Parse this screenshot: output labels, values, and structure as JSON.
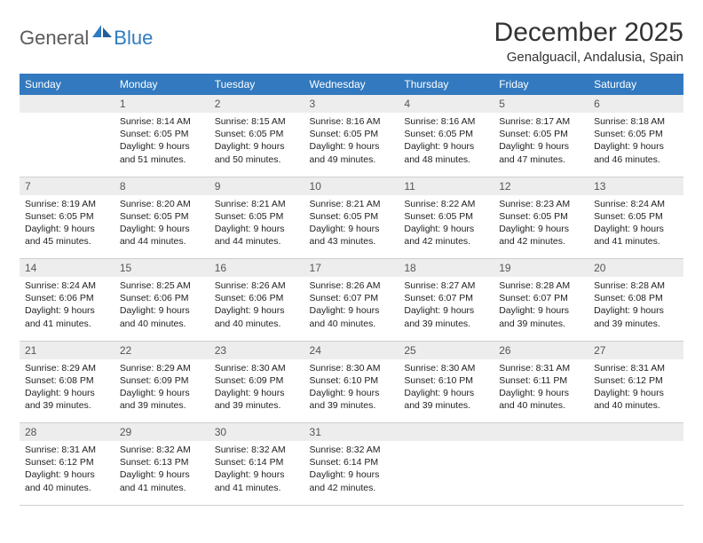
{
  "logo": {
    "part1": "General",
    "part2": "Blue"
  },
  "title": "December 2025",
  "location": "Genalguacil, Andalusia, Spain",
  "colors": {
    "header_bg": "#3279bf",
    "header_text": "#ffffff",
    "daynum_bg": "#ededed",
    "logo_gray": "#5b5b5b",
    "logo_blue": "#2f7bbf"
  },
  "weekdays": [
    "Sunday",
    "Monday",
    "Tuesday",
    "Wednesday",
    "Thursday",
    "Friday",
    "Saturday"
  ],
  "weeks": [
    {
      "nums": [
        "",
        "1",
        "2",
        "3",
        "4",
        "5",
        "6"
      ],
      "cells": [
        "",
        "Sunrise: 8:14 AM\nSunset: 6:05 PM\nDaylight: 9 hours and 51 minutes.",
        "Sunrise: 8:15 AM\nSunset: 6:05 PM\nDaylight: 9 hours and 50 minutes.",
        "Sunrise: 8:16 AM\nSunset: 6:05 PM\nDaylight: 9 hours and 49 minutes.",
        "Sunrise: 8:16 AM\nSunset: 6:05 PM\nDaylight: 9 hours and 48 minutes.",
        "Sunrise: 8:17 AM\nSunset: 6:05 PM\nDaylight: 9 hours and 47 minutes.",
        "Sunrise: 8:18 AM\nSunset: 6:05 PM\nDaylight: 9 hours and 46 minutes."
      ]
    },
    {
      "nums": [
        "7",
        "8",
        "9",
        "10",
        "11",
        "12",
        "13"
      ],
      "cells": [
        "Sunrise: 8:19 AM\nSunset: 6:05 PM\nDaylight: 9 hours and 45 minutes.",
        "Sunrise: 8:20 AM\nSunset: 6:05 PM\nDaylight: 9 hours and 44 minutes.",
        "Sunrise: 8:21 AM\nSunset: 6:05 PM\nDaylight: 9 hours and 44 minutes.",
        "Sunrise: 8:21 AM\nSunset: 6:05 PM\nDaylight: 9 hours and 43 minutes.",
        "Sunrise: 8:22 AM\nSunset: 6:05 PM\nDaylight: 9 hours and 42 minutes.",
        "Sunrise: 8:23 AM\nSunset: 6:05 PM\nDaylight: 9 hours and 42 minutes.",
        "Sunrise: 8:24 AM\nSunset: 6:05 PM\nDaylight: 9 hours and 41 minutes."
      ]
    },
    {
      "nums": [
        "14",
        "15",
        "16",
        "17",
        "18",
        "19",
        "20"
      ],
      "cells": [
        "Sunrise: 8:24 AM\nSunset: 6:06 PM\nDaylight: 9 hours and 41 minutes.",
        "Sunrise: 8:25 AM\nSunset: 6:06 PM\nDaylight: 9 hours and 40 minutes.",
        "Sunrise: 8:26 AM\nSunset: 6:06 PM\nDaylight: 9 hours and 40 minutes.",
        "Sunrise: 8:26 AM\nSunset: 6:07 PM\nDaylight: 9 hours and 40 minutes.",
        "Sunrise: 8:27 AM\nSunset: 6:07 PM\nDaylight: 9 hours and 39 minutes.",
        "Sunrise: 8:28 AM\nSunset: 6:07 PM\nDaylight: 9 hours and 39 minutes.",
        "Sunrise: 8:28 AM\nSunset: 6:08 PM\nDaylight: 9 hours and 39 minutes."
      ]
    },
    {
      "nums": [
        "21",
        "22",
        "23",
        "24",
        "25",
        "26",
        "27"
      ],
      "cells": [
        "Sunrise: 8:29 AM\nSunset: 6:08 PM\nDaylight: 9 hours and 39 minutes.",
        "Sunrise: 8:29 AM\nSunset: 6:09 PM\nDaylight: 9 hours and 39 minutes.",
        "Sunrise: 8:30 AM\nSunset: 6:09 PM\nDaylight: 9 hours and 39 minutes.",
        "Sunrise: 8:30 AM\nSunset: 6:10 PM\nDaylight: 9 hours and 39 minutes.",
        "Sunrise: 8:30 AM\nSunset: 6:10 PM\nDaylight: 9 hours and 39 minutes.",
        "Sunrise: 8:31 AM\nSunset: 6:11 PM\nDaylight: 9 hours and 40 minutes.",
        "Sunrise: 8:31 AM\nSunset: 6:12 PM\nDaylight: 9 hours and 40 minutes."
      ]
    },
    {
      "nums": [
        "28",
        "29",
        "30",
        "31",
        "",
        "",
        ""
      ],
      "cells": [
        "Sunrise: 8:31 AM\nSunset: 6:12 PM\nDaylight: 9 hours and 40 minutes.",
        "Sunrise: 8:32 AM\nSunset: 6:13 PM\nDaylight: 9 hours and 41 minutes.",
        "Sunrise: 8:32 AM\nSunset: 6:14 PM\nDaylight: 9 hours and 41 minutes.",
        "Sunrise: 8:32 AM\nSunset: 6:14 PM\nDaylight: 9 hours and 42 minutes.",
        "",
        "",
        ""
      ]
    }
  ]
}
